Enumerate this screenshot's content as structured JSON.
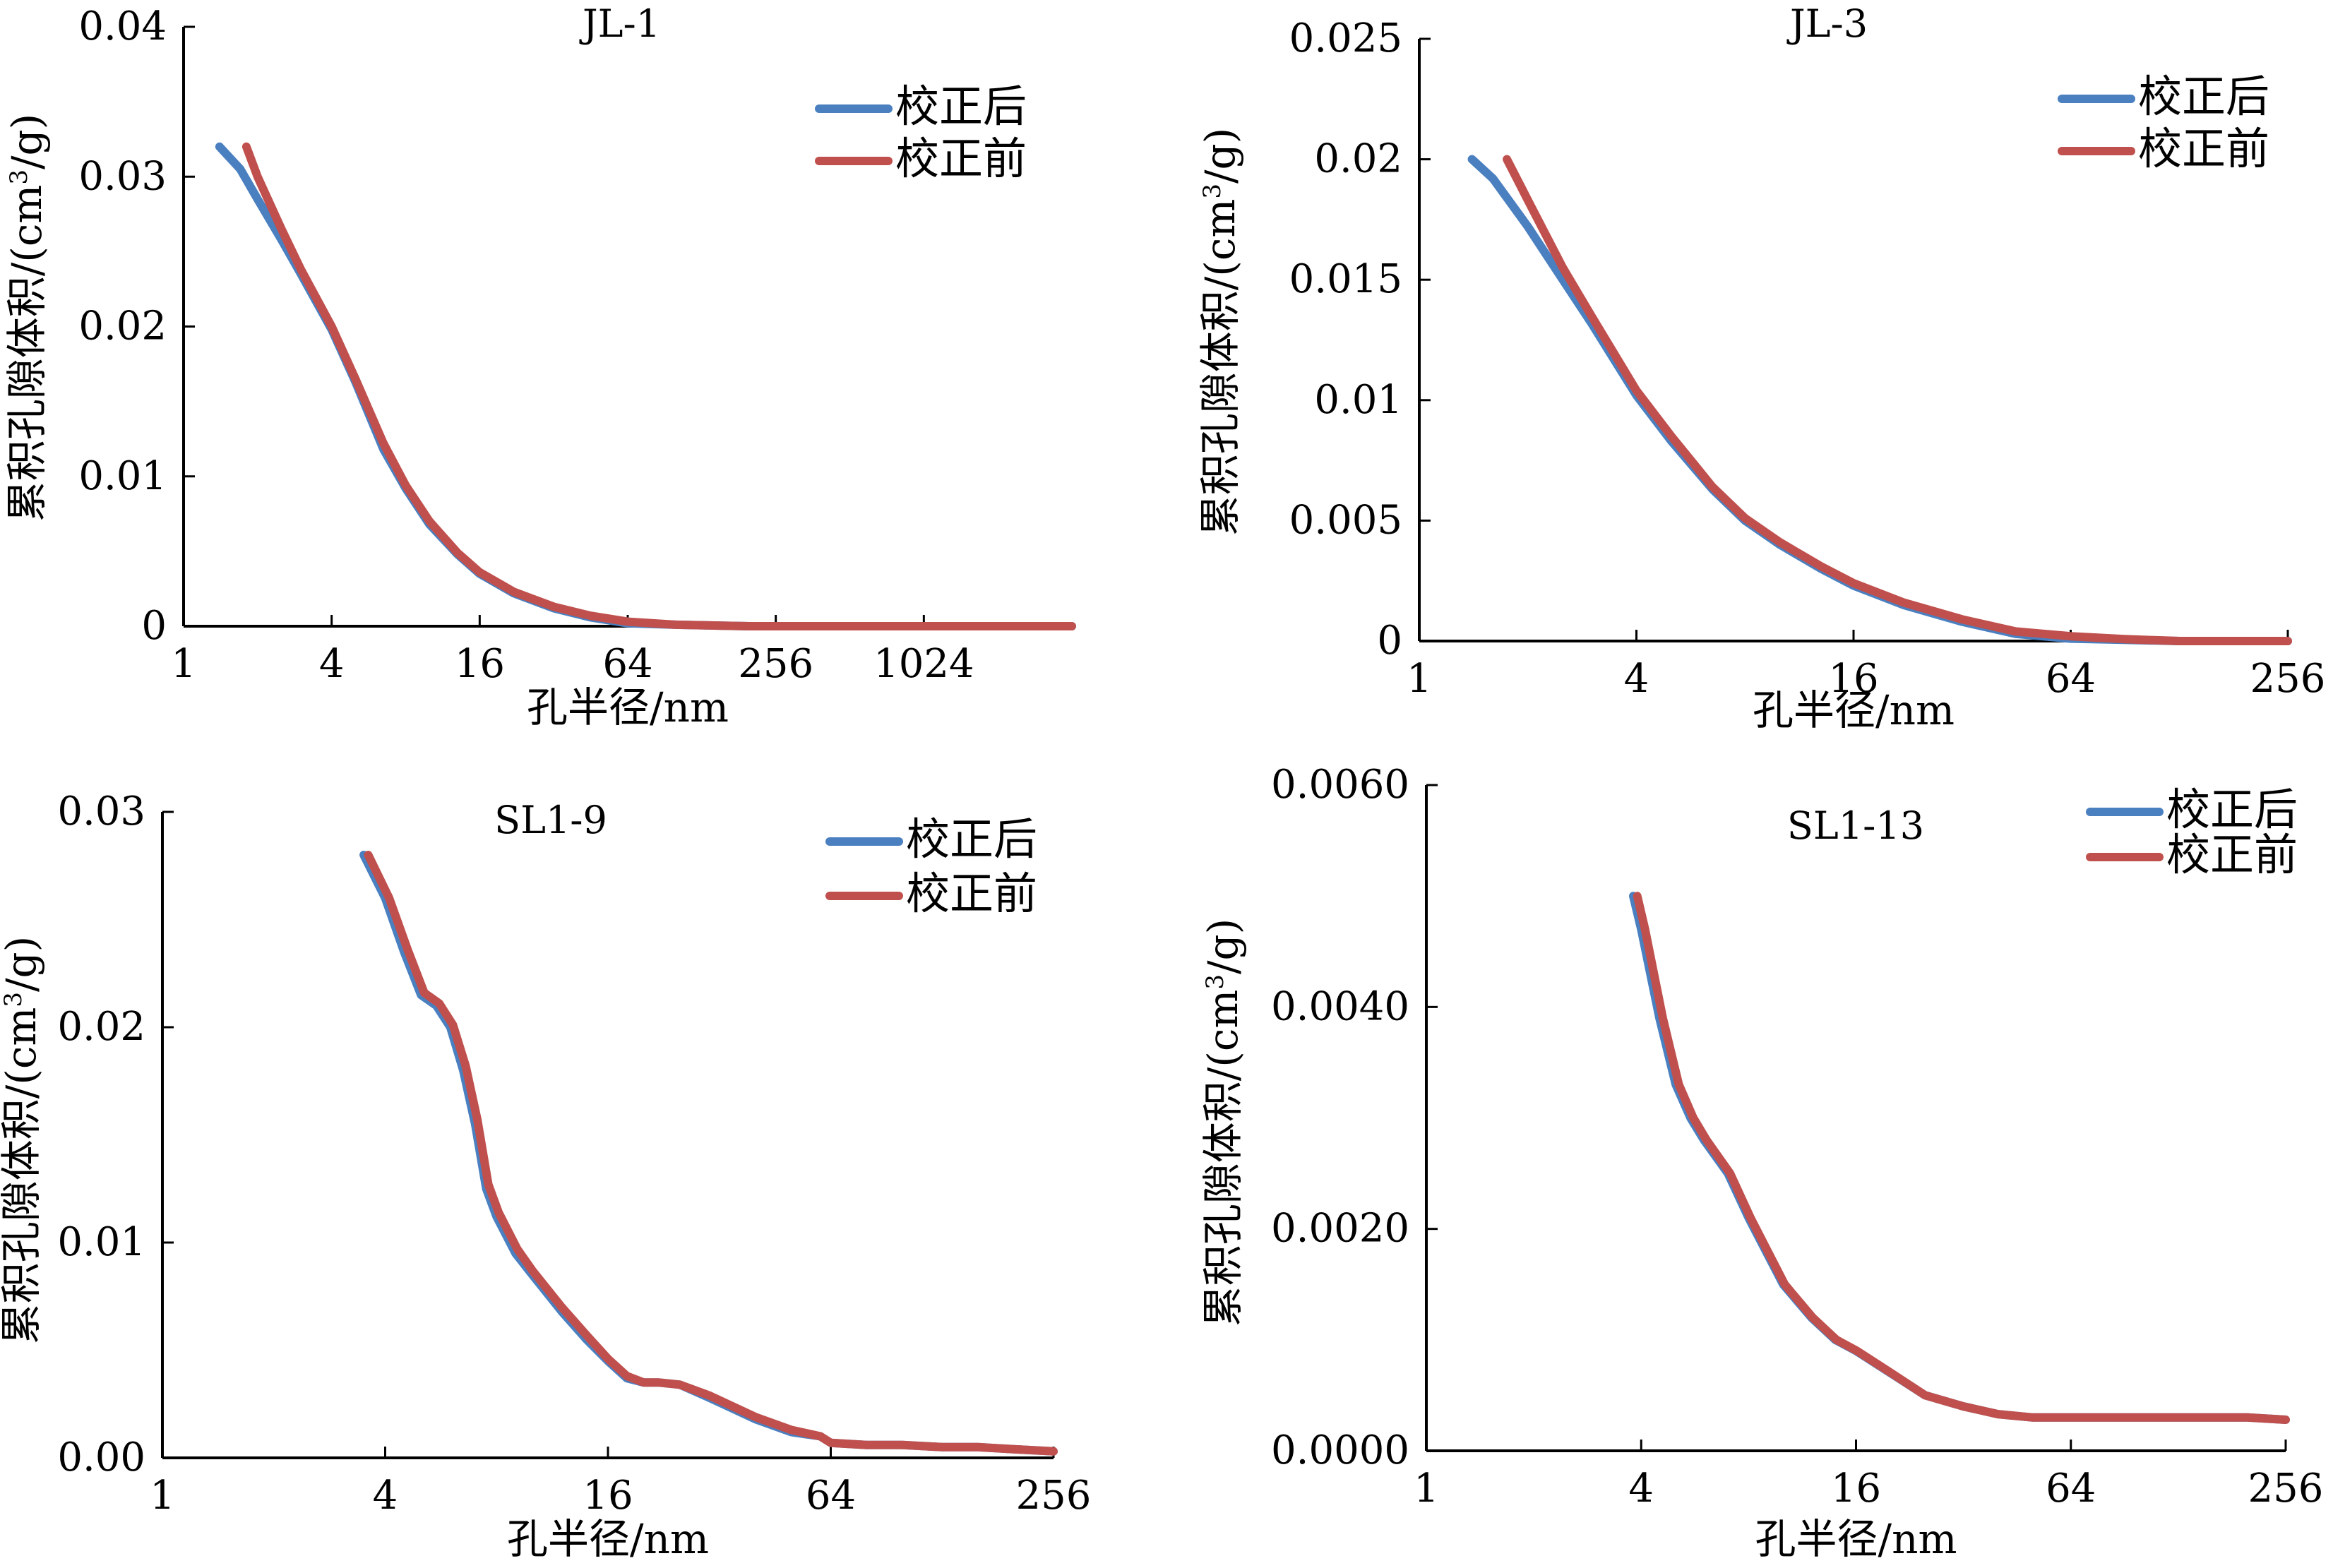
{
  "colors": {
    "after": "#4a7fc0",
    "before": "#c0504d",
    "axis": "#000000"
  },
  "chart_data": [
    {
      "type": "line",
      "title": "JL-1",
      "xlabel": "孔半径/nm",
      "ylabel_main": "累积孔隙体积/(cm",
      "ylabel_sup": "3",
      "ylabel_tail": "/g)",
      "x_scale": "log2",
      "xlim": [
        1,
        4096
      ],
      "ylim": [
        0,
        0.04
      ],
      "xticks": [
        1,
        4,
        16,
        64,
        256,
        1024
      ],
      "xtick_labels": [
        "1",
        "4",
        "16",
        "64",
        "256",
        "1024"
      ],
      "yticks": [
        0,
        0.01,
        0.02,
        0.03,
        0.04
      ],
      "ytick_labels": [
        "0",
        "0.01",
        "0.02",
        "0.03",
        "0.04"
      ],
      "legend": {
        "position": "top-right",
        "entries": [
          "校正后",
          "校正前"
        ]
      },
      "series": [
        {
          "name": "校正后",
          "color_key": "after",
          "x": [
            1.4,
            1.7,
            2,
            2.5,
            3,
            4,
            5,
            6.5,
            8,
            10,
            13,
            16,
            22,
            32,
            45,
            64,
            100,
            200,
            512,
            1024,
            2048,
            4096
          ],
          "y": [
            0.032,
            0.0305,
            0.0285,
            0.0258,
            0.0235,
            0.0198,
            0.0163,
            0.0118,
            0.0092,
            0.0068,
            0.0048,
            0.0035,
            0.0022,
            0.0012,
            0.0006,
            0.0002,
            0.0001,
            0,
            0,
            0,
            0,
            0
          ]
        },
        {
          "name": "校正前",
          "color_key": "before",
          "x": [
            1.8,
            2,
            2.5,
            3,
            4,
            5,
            6.5,
            8,
            10,
            13,
            16,
            22,
            32,
            45,
            64,
            100,
            200,
            512,
            1024,
            2048,
            4096
          ],
          "y": [
            0.032,
            0.03,
            0.0265,
            0.0238,
            0.02,
            0.0165,
            0.0122,
            0.0094,
            0.007,
            0.0049,
            0.0036,
            0.0023,
            0.0013,
            0.0007,
            0.0003,
            0.0001,
            0,
            0,
            0,
            0,
            0
          ]
        }
      ]
    },
    {
      "type": "line",
      "title": "JL-3",
      "xlabel": "孔半径/nm",
      "ylabel_main": "累积孔隙体积/(cm",
      "ylabel_sup": "3",
      "ylabel_tail": "/g)",
      "x_scale": "log2",
      "xlim": [
        1,
        256
      ],
      "ylim": [
        0,
        0.025
      ],
      "xticks": [
        1,
        4,
        16,
        64,
        256
      ],
      "xtick_labels": [
        "1",
        "4",
        "16",
        "64",
        "256"
      ],
      "yticks": [
        0,
        0.005,
        0.01,
        0.015,
        0.02,
        0.025
      ],
      "ytick_labels": [
        "0",
        "0.005",
        "0.01",
        "0.015",
        "0.02",
        "0.025"
      ],
      "legend": {
        "position": "top-right",
        "entries": [
          "校正后",
          "校正前"
        ]
      },
      "series": [
        {
          "name": "校正后",
          "color_key": "after",
          "x": [
            1.4,
            1.6,
            2,
            2.5,
            3,
            4,
            5,
            6.5,
            8,
            10,
            13,
            16,
            22,
            32,
            45,
            64,
            90,
            128,
            256
          ],
          "y": [
            0.02,
            0.0192,
            0.0172,
            0.015,
            0.0132,
            0.0102,
            0.0083,
            0.0063,
            0.005,
            0.004,
            0.003,
            0.0023,
            0.0015,
            0.0008,
            0.0003,
            0.0001,
            5e-05,
            0,
            0
          ]
        },
        {
          "name": "校正前",
          "color_key": "before",
          "x": [
            1.75,
            2,
            2.5,
            3,
            4,
            5,
            6.5,
            8,
            10,
            13,
            16,
            22,
            32,
            45,
            64,
            90,
            128,
            256
          ],
          "y": [
            0.02,
            0.0183,
            0.0155,
            0.0135,
            0.0104,
            0.0085,
            0.0064,
            0.0051,
            0.0041,
            0.0031,
            0.0024,
            0.0016,
            0.0009,
            0.0004,
            0.0002,
            8e-05,
            0,
            0
          ]
        }
      ]
    },
    {
      "type": "line",
      "title": "SL1-9",
      "xlabel": "孔半径/nm",
      "ylabel_main": "累积孔隙体积/(cm",
      "ylabel_sup": "3",
      "ylabel_tail": "/g)",
      "x_scale": "log2",
      "xlim": [
        1,
        256
      ],
      "ylim": [
        0,
        0.03
      ],
      "xticks": [
        1,
        4,
        16,
        64,
        256
      ],
      "xtick_labels": [
        "1",
        "4",
        "16",
        "64",
        "256"
      ],
      "yticks": [
        0,
        0.01,
        0.02,
        0.03
      ],
      "ytick_labels": [
        "0.00",
        "0.01",
        "0.02",
        "0.03"
      ],
      "legend": {
        "position": "top-right",
        "entries": [
          "校正后",
          "校正前"
        ]
      },
      "series": [
        {
          "name": "校正后",
          "color_key": "after",
          "x": [
            3.5,
            4,
            4.5,
            5,
            5.5,
            6,
            6.5,
            7,
            7.5,
            8,
            9,
            10,
            12,
            14,
            16,
            18,
            20,
            22,
            25,
            30,
            40,
            50,
            60,
            64,
            80,
            100,
            128,
            160,
            200,
            256
          ],
          "y": [
            0.028,
            0.026,
            0.0235,
            0.0215,
            0.021,
            0.02,
            0.018,
            0.0155,
            0.0125,
            0.0112,
            0.0095,
            0.0085,
            0.0068,
            0.0055,
            0.0045,
            0.0037,
            0.0035,
            0.0035,
            0.0034,
            0.0028,
            0.0018,
            0.0012,
            0.001,
            0.0007,
            0.0006,
            0.0006,
            0.0005,
            0.0005,
            0.0004,
            0.0003
          ]
        },
        {
          "name": "校正前",
          "color_key": "before",
          "x": [
            3.6,
            4.1,
            4.6,
            5.1,
            5.6,
            6.1,
            6.6,
            7.1,
            7.6,
            8.1,
            9.1,
            10,
            12,
            14,
            16,
            18,
            20,
            22,
            25,
            30,
            40,
            50,
            60,
            64,
            80,
            100,
            128,
            160,
            200,
            256
          ],
          "y": [
            0.028,
            0.026,
            0.0236,
            0.0216,
            0.0211,
            0.0201,
            0.0182,
            0.0157,
            0.0127,
            0.0114,
            0.0097,
            0.0087,
            0.007,
            0.0057,
            0.0046,
            0.0038,
            0.0035,
            0.0035,
            0.0034,
            0.0029,
            0.0019,
            0.0013,
            0.001,
            0.0007,
            0.0006,
            0.0006,
            0.0005,
            0.0005,
            0.0004,
            0.0003
          ]
        }
      ]
    },
    {
      "type": "line",
      "title": "SL1-13",
      "xlabel": "孔半径/nm",
      "ylabel_main": "累积孔隙体积/(cm",
      "ylabel_sup": "3",
      "ylabel_tail": "/g)",
      "x_scale": "log2",
      "xlim": [
        1,
        256
      ],
      "ylim": [
        0,
        0.006
      ],
      "xticks": [
        1,
        4,
        16,
        64,
        256
      ],
      "xtick_labels": [
        "1",
        "4",
        "16",
        "64",
        "256"
      ],
      "yticks": [
        0,
        0.002,
        0.004,
        0.006
      ],
      "ytick_labels": [
        "0.0000",
        "0.0020",
        "0.0040",
        "0.0060"
      ],
      "legend": {
        "position": "top-right",
        "entries": [
          "校正后",
          "校正前"
        ]
      },
      "series": [
        {
          "name": "校正后",
          "color_key": "after",
          "x": [
            3.8,
            4,
            4.5,
            5,
            5.5,
            6,
            7,
            8,
            10,
            12,
            14,
            16,
            20,
            25,
            32,
            40,
            50,
            64,
            100,
            128,
            200,
            256
          ],
          "y": [
            0.005,
            0.0047,
            0.0039,
            0.0033,
            0.003,
            0.0028,
            0.0025,
            0.0021,
            0.0015,
            0.0012,
            0.001,
            0.0009,
            0.0007,
            0.0005,
            0.0004,
            0.00033,
            0.0003,
            0.0003,
            0.0003,
            0.0003,
            0.0003,
            0.00028
          ]
        },
        {
          "name": "校正前",
          "color_key": "before",
          "x": [
            3.9,
            4.1,
            4.6,
            5.1,
            5.6,
            6.1,
            7.1,
            8.1,
            10.1,
            12.1,
            14.1,
            16.1,
            20.1,
            25,
            32,
            40,
            50,
            64,
            100,
            128,
            200,
            256
          ],
          "y": [
            0.005,
            0.0047,
            0.0039,
            0.0033,
            0.003,
            0.0028,
            0.0025,
            0.0021,
            0.0015,
            0.0012,
            0.001,
            0.0009,
            0.0007,
            0.0005,
            0.0004,
            0.00033,
            0.0003,
            0.0003,
            0.0003,
            0.0003,
            0.0003,
            0.00028
          ]
        }
      ]
    }
  ]
}
